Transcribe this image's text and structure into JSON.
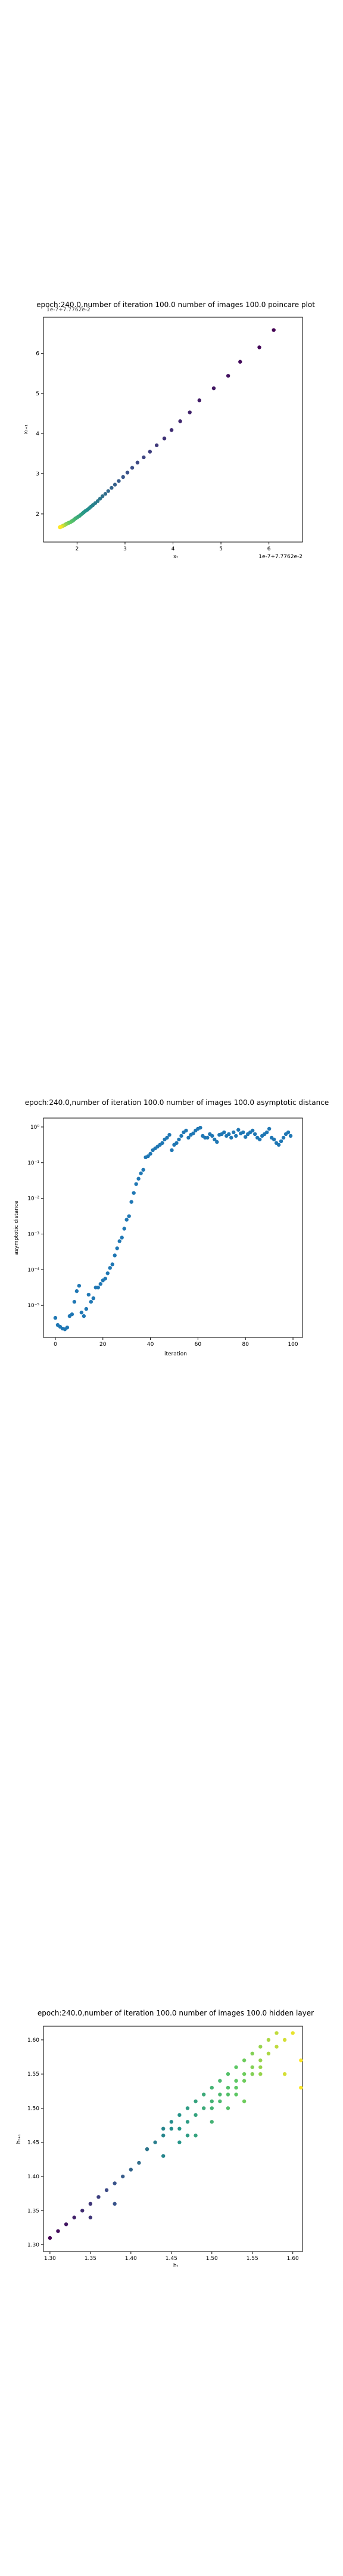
{
  "chart_data": [
    {
      "type": "scatter",
      "title": "epoch:240.0,number of iteration 100.0  number of images 100.0 poincare plot",
      "top_overlay_text": "1e-7+7.7762e-2",
      "xlabel": "xₜ",
      "ylabel": "xₜ₊₁",
      "x_offset_text": "1e-7+7.7762e-2",
      "xlim": [
        1.3,
        6.7
      ],
      "ylim": [
        1.3,
        6.9
      ],
      "xticks": [
        "2",
        "3",
        "4",
        "5",
        "6"
      ],
      "yticks": [
        "2",
        "3",
        "4",
        "5",
        "6"
      ],
      "colormap": [
        "#440154",
        "#3b528b",
        "#21918c",
        "#5ec962",
        "#fde725"
      ],
      "points_x": [
        6.1,
        5.8,
        5.4,
        5.15,
        4.85,
        4.55,
        4.35,
        4.15,
        3.97,
        3.82,
        3.66,
        3.52,
        3.39,
        3.26,
        3.15,
        3.05,
        2.96,
        2.87,
        2.79,
        2.72,
        2.65,
        2.59,
        2.53,
        2.48,
        2.43,
        2.38,
        2.33,
        2.29,
        2.25,
        2.21,
        2.17,
        2.14,
        2.11,
        2.08,
        2.05,
        2.02,
        2.0,
        1.97,
        1.95,
        1.93,
        1.91,
        1.89,
        1.87,
        1.85,
        1.83,
        1.81,
        1.79,
        1.78,
        1.76,
        1.75,
        1.74,
        1.72,
        1.71,
        1.7,
        1.69,
        1.68,
        1.67,
        1.66,
        1.65,
        1.64
      ],
      "points_y": [
        6.58,
        6.15,
        5.79,
        5.44,
        5.13,
        4.83,
        4.53,
        4.31,
        4.09,
        3.88,
        3.71,
        3.55,
        3.41,
        3.28,
        3.15,
        3.03,
        2.92,
        2.82,
        2.73,
        2.65,
        2.57,
        2.5,
        2.44,
        2.38,
        2.32,
        2.27,
        2.22,
        2.18,
        2.14,
        2.1,
        2.07,
        2.04,
        2.01,
        1.98,
        1.95,
        1.93,
        1.91,
        1.89,
        1.87,
        1.85,
        1.83,
        1.82,
        1.8,
        1.79,
        1.78,
        1.77,
        1.76,
        1.75,
        1.74,
        1.73,
        1.72,
        1.71,
        1.71,
        1.7,
        1.69,
        1.69,
        1.68,
        1.68,
        1.67,
        1.67
      ]
    },
    {
      "type": "scatter",
      "title": "epoch:240.0,number of iteration 100.0  number of images 100.0 asymptotic distance",
      "xlabel": "iteration",
      "ylabel": "asymptotic distance",
      "yscale": "log",
      "xlim": [
        -5,
        104
      ],
      "ylim_log10": [
        -5.9,
        0.25
      ],
      "xticks": [
        "0",
        "20",
        "40",
        "60",
        "80",
        "100"
      ],
      "xtick_values": [
        0,
        20,
        40,
        60,
        80,
        100
      ],
      "yticks": [
        "10⁻⁵",
        "10⁻⁴",
        "10⁻³",
        "10⁻²",
        "10⁻¹",
        "10⁰"
      ],
      "ytick_values_log10": [
        -5,
        -4,
        -3,
        -2,
        -1,
        0
      ],
      "color": "#1f77b4",
      "x": [
        0,
        1,
        2,
        3,
        4,
        5,
        6,
        7,
        8,
        9,
        10,
        11,
        12,
        13,
        14,
        15,
        16,
        17,
        18,
        19,
        20,
        21,
        22,
        23,
        24,
        25,
        26,
        27,
        28,
        29,
        30,
        31,
        32,
        33,
        34,
        35,
        36,
        37,
        38,
        39,
        40,
        41,
        42,
        43,
        44,
        45,
        46,
        47,
        48,
        49,
        50,
        51,
        52,
        53,
        54,
        55,
        56,
        57,
        58,
        59,
        60,
        61,
        62,
        63,
        64,
        65,
        66,
        67,
        68,
        69,
        70,
        71,
        72,
        73,
        74,
        75,
        76,
        77,
        78,
        79,
        80,
        81,
        82,
        83,
        84,
        85,
        86,
        87,
        88,
        89,
        90,
        91,
        92,
        93,
        94,
        95,
        96,
        97,
        98,
        99
      ],
      "y_log10": [
        -5.35,
        -5.55,
        -5.6,
        -5.65,
        -5.67,
        -5.62,
        -5.3,
        -5.25,
        -4.9,
        -4.6,
        -4.45,
        -5.2,
        -5.3,
        -5.1,
        -4.7,
        -4.9,
        -4.8,
        -4.5,
        -4.5,
        -4.4,
        -4.3,
        -4.25,
        -4.1,
        -3.95,
        -3.85,
        -3.6,
        -3.4,
        -3.2,
        -3.1,
        -2.85,
        -2.6,
        -2.5,
        -2.1,
        -1.85,
        -1.6,
        -1.45,
        -1.3,
        -1.2,
        -0.85,
        -0.82,
        -0.75,
        -0.65,
        -0.6,
        -0.55,
        -0.5,
        -0.45,
        -0.35,
        -0.3,
        -0.22,
        -0.65,
        -0.5,
        -0.45,
        -0.35,
        -0.25,
        -0.15,
        -0.1,
        -0.3,
        -0.22,
        -0.18,
        -0.1,
        -0.05,
        -0.02,
        -0.25,
        -0.3,
        -0.3,
        -0.2,
        -0.25,
        -0.35,
        -0.42,
        -0.22,
        -0.2,
        -0.15,
        -0.25,
        -0.2,
        -0.3,
        -0.15,
        -0.25,
        -0.08,
        -0.18,
        -0.15,
        -0.28,
        -0.2,
        -0.15,
        -0.1,
        -0.2,
        -0.3,
        -0.35,
        -0.25,
        -0.2,
        -0.15,
        -0.05,
        -0.3,
        -0.35,
        -0.45,
        -0.5,
        -0.4,
        -0.3,
        -0.2,
        -0.15,
        -0.25
      ]
    },
    {
      "type": "scatter",
      "title": "epoch:240.0,number of iteration 100.0  number of images 100.0 hidden layer",
      "xlabel": "hₜ",
      "ylabel": "hₜ₊₁",
      "xlim": [
        1.292,
        1.612
      ],
      "ylim": [
        1.29,
        1.62
      ],
      "xticks": [
        "1.30",
        "1.35",
        "1.40",
        "1.45",
        "1.50",
        "1.55",
        "1.60"
      ],
      "xtick_values": [
        1.3,
        1.35,
        1.4,
        1.45,
        1.5,
        1.55,
        1.6
      ],
      "yticks": [
        "1.30",
        "1.35",
        "1.40",
        "1.45",
        "1.50",
        "1.55",
        "1.60"
      ],
      "ytick_values": [
        1.3,
        1.35,
        1.4,
        1.45,
        1.5,
        1.55,
        1.6
      ],
      "colormap": [
        "#440154",
        "#3b528b",
        "#21918c",
        "#5ec962",
        "#fde725"
      ],
      "points_x": [
        1.3,
        1.31,
        1.32,
        1.33,
        1.34,
        1.35,
        1.36,
        1.37,
        1.38,
        1.39,
        1.4,
        1.41,
        1.42,
        1.43,
        1.44,
        1.44,
        1.45,
        1.45,
        1.46,
        1.46,
        1.47,
        1.47,
        1.48,
        1.48,
        1.49,
        1.49,
        1.5,
        1.5,
        1.5,
        1.51,
        1.51,
        1.51,
        1.52,
        1.52,
        1.52,
        1.53,
        1.53,
        1.53,
        1.54,
        1.54,
        1.54,
        1.55,
        1.55,
        1.55,
        1.56,
        1.56,
        1.56,
        1.57,
        1.57,
        1.58,
        1.58,
        1.59,
        1.6,
        1.61,
        1.61,
        1.44,
        1.46,
        1.48,
        1.5,
        1.52,
        1.54,
        1.38,
        1.35,
        1.42,
        1.47,
        1.53,
        1.56,
        1.59
      ],
      "points_y": [
        1.31,
        1.32,
        1.33,
        1.34,
        1.35,
        1.36,
        1.37,
        1.38,
        1.39,
        1.4,
        1.41,
        1.42,
        1.44,
        1.45,
        1.46,
        1.47,
        1.47,
        1.48,
        1.47,
        1.49,
        1.48,
        1.5,
        1.49,
        1.51,
        1.5,
        1.52,
        1.51,
        1.53,
        1.5,
        1.52,
        1.54,
        1.51,
        1.53,
        1.55,
        1.52,
        1.54,
        1.56,
        1.53,
        1.55,
        1.57,
        1.54,
        1.56,
        1.58,
        1.55,
        1.57,
        1.59,
        1.56,
        1.58,
        1.6,
        1.59,
        1.61,
        1.6,
        1.61,
        1.57,
        1.53,
        1.43,
        1.45,
        1.46,
        1.48,
        1.5,
        1.51,
        1.36,
        1.34,
        1.44,
        1.46,
        1.52,
        1.55,
        1.55
      ]
    }
  ]
}
